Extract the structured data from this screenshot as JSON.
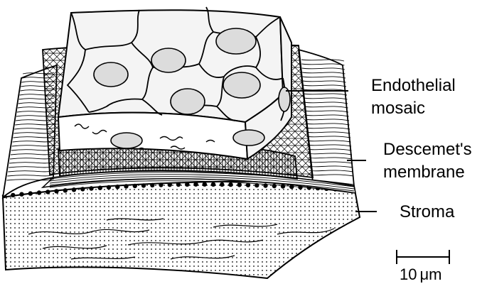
{
  "diagram": {
    "labels": {
      "endothelial_line1": "Endothelial",
      "endothelial_line2": "mosaic",
      "descemet_line1": "Descemet's",
      "descemet_line2": "membrane",
      "stroma": "Stroma"
    },
    "scale_bar": {
      "value": "10",
      "unit": "μm"
    },
    "colors": {
      "line": "#000000",
      "background": "#ffffff",
      "cell_fill": "#f4f4f4",
      "nucleus_fill": "#dcdcdc"
    }
  }
}
